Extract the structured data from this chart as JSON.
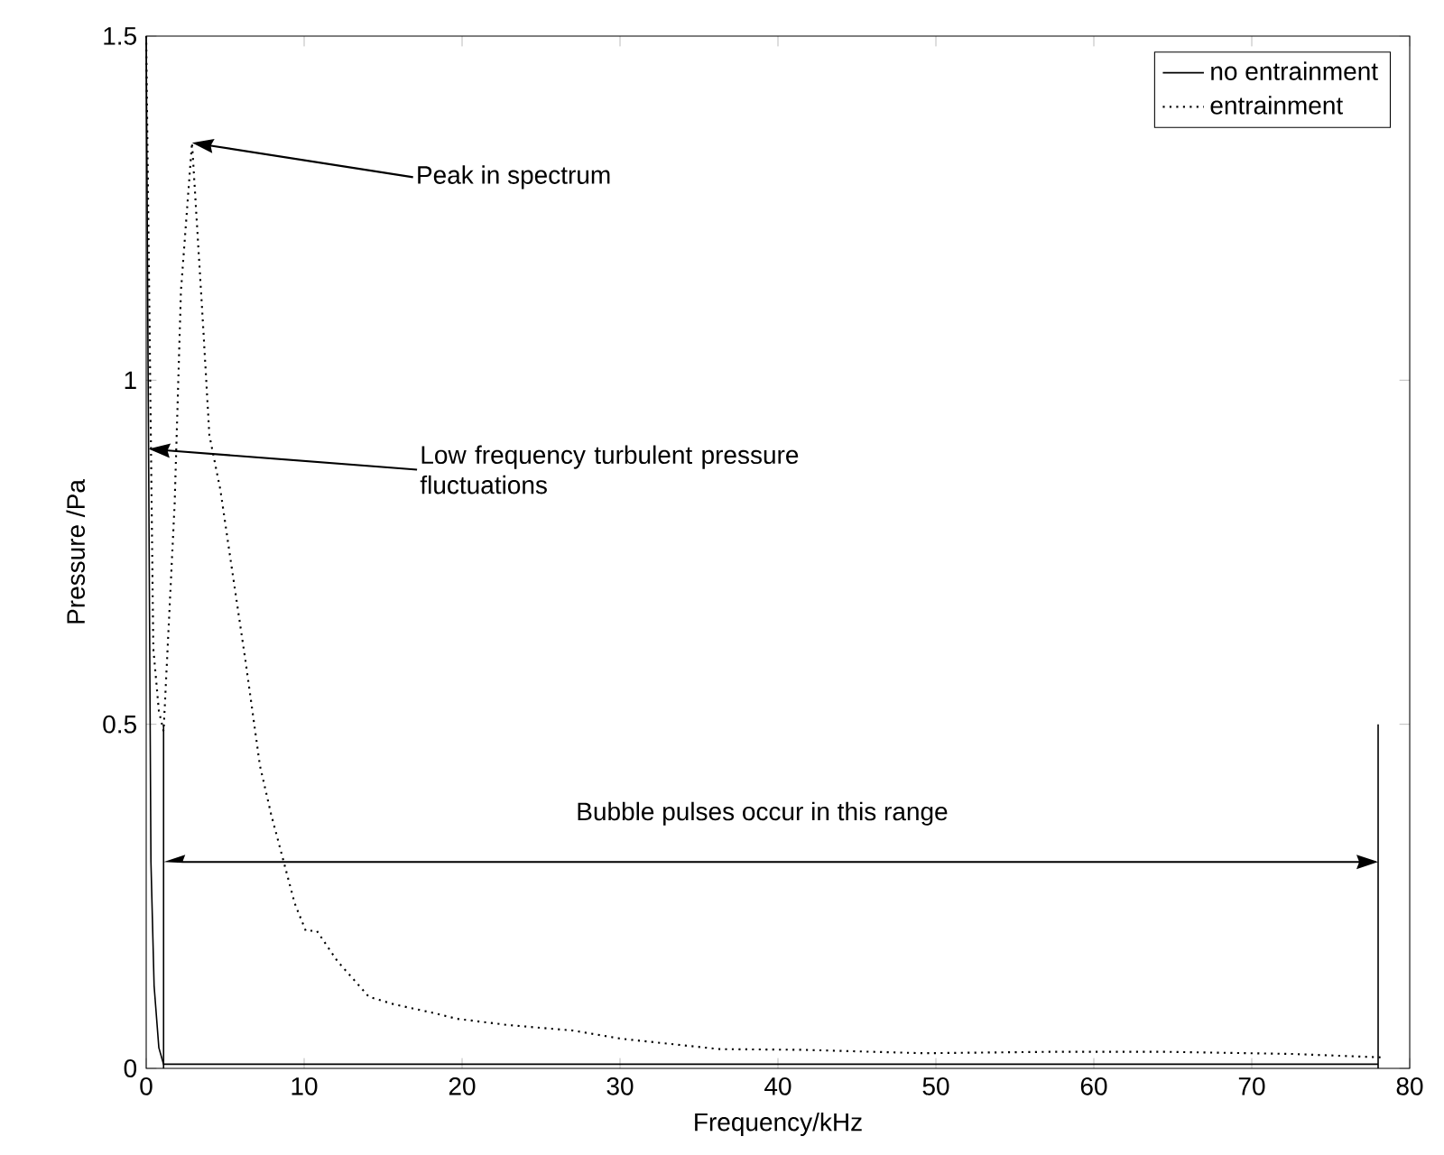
{
  "chart_data": {
    "type": "line",
    "xlabel": "Frequency/kHz",
    "ylabel": "Pressure /Pa",
    "xlim": [
      0,
      80
    ],
    "ylim": [
      0,
      1.5
    ],
    "xticks": [
      0,
      10,
      20,
      30,
      40,
      50,
      60,
      70,
      80
    ],
    "yticks": [
      0,
      0.5,
      1,
      1.5
    ],
    "legend": "top right",
    "grid": false,
    "marker": "none",
    "series": [
      {
        "name": "no entrainment",
        "color": "#000000",
        "line_style": "solid",
        "x": [
          0,
          0.15,
          0.3,
          0.5,
          0.8,
          1.1,
          20,
          40,
          60,
          78
        ],
        "values": [
          1.5,
          0.9,
          0.3,
          0.12,
          0.03,
          0.006,
          0.006,
          0.006,
          0.006,
          0.006
        ]
      },
      {
        "name": "entrainment",
        "color": "#000000",
        "line_style": "dotted",
        "x": [
          0,
          0.45,
          0.8,
          1.1,
          1.8,
          2.2,
          2.9,
          3.6,
          4.0,
          4.7,
          5.4,
          6.3,
          7.2,
          7.9,
          9.4,
          10.1,
          10.8,
          12.1,
          14.1,
          15.7,
          17.9,
          19.7,
          22.9,
          27,
          30.1,
          36.3,
          41.5,
          49.2,
          57,
          64.7,
          72.5,
          78.2
        ],
        "values": [
          1.5,
          0.61,
          0.52,
          0.49,
          0.82,
          1.13,
          1.345,
          1.08,
          0.92,
          0.84,
          0.73,
          0.59,
          0.44,
          0.37,
          0.24,
          0.2,
          0.2,
          0.156,
          0.104,
          0.093,
          0.082,
          0.072,
          0.063,
          0.055,
          0.043,
          0.028,
          0.027,
          0.022,
          0.024,
          0.024,
          0.021,
          0.016
        ]
      }
    ],
    "annotations": [
      "Peak in spectrum",
      "Low frequency turbulent pressure fluctuations",
      "Bubble pulses occur in this range"
    ],
    "ref_lines": [
      {
        "axis": "x",
        "value": 1.1
      },
      {
        "axis": "x",
        "value": 78
      }
    ]
  }
}
